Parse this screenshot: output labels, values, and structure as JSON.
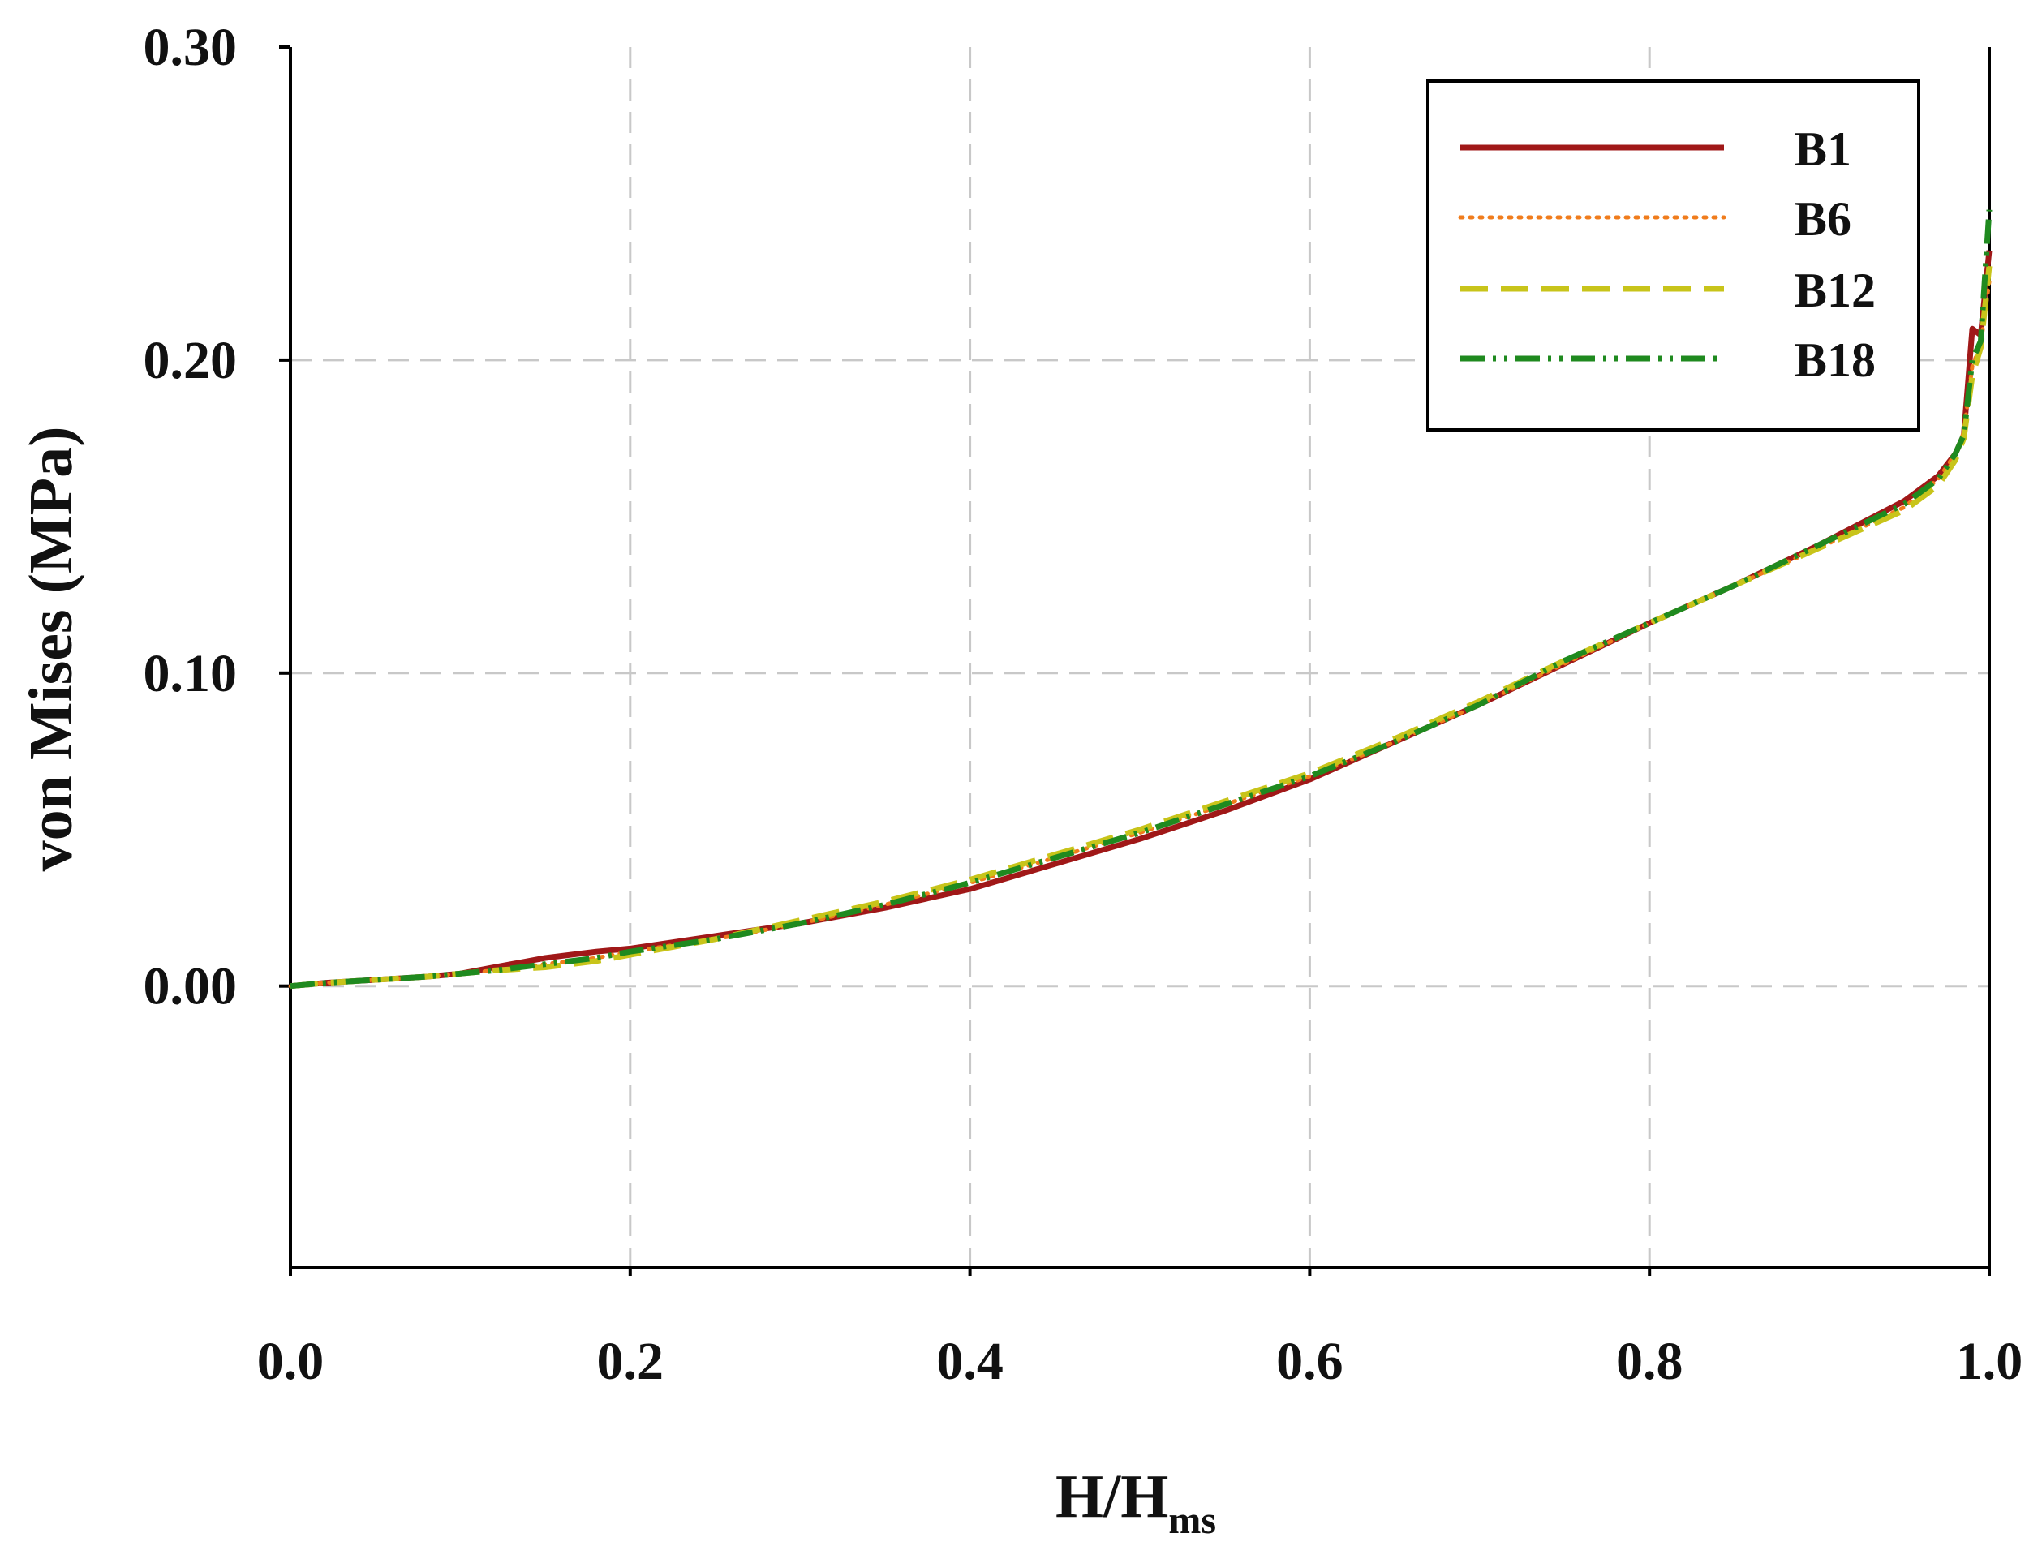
{
  "chart_data": {
    "type": "line",
    "xlabel": "H/H",
    "xlabel_subscript": "ms",
    "ylabel": "von Mises (MPa)",
    "xlim": [
      0.0,
      1.0
    ],
    "ylim": [
      -0.09,
      0.3
    ],
    "x_ticks": [
      "0.0",
      "0.2",
      "0.4",
      "0.6",
      "0.8",
      "1.0"
    ],
    "x_tick_values": [
      0.0,
      0.2,
      0.4,
      0.6,
      0.8,
      1.0
    ],
    "y_ticks": [
      "0.00",
      "0.10",
      "0.20",
      "0.30"
    ],
    "y_tick_values": [
      0.0,
      0.1,
      0.2,
      0.3
    ],
    "grid": true,
    "legend_position": "top-right",
    "series": [
      {
        "name": "B1",
        "color": "#a01818",
        "dash": "solid",
        "x": [
          0.0,
          0.02,
          0.05,
          0.08,
          0.1,
          0.12,
          0.15,
          0.18,
          0.2,
          0.25,
          0.3,
          0.35,
          0.4,
          0.45,
          0.5,
          0.55,
          0.6,
          0.65,
          0.7,
          0.75,
          0.8,
          0.85,
          0.9,
          0.95,
          0.97,
          0.98,
          0.985,
          0.99,
          0.995,
          1.0
        ],
        "y": [
          0.0,
          0.001,
          0.002,
          0.003,
          0.004,
          0.006,
          0.009,
          0.011,
          0.012,
          0.016,
          0.02,
          0.025,
          0.031,
          0.039,
          0.047,
          0.056,
          0.066,
          0.078,
          0.09,
          0.103,
          0.116,
          0.128,
          0.141,
          0.155,
          0.163,
          0.17,
          0.176,
          0.21,
          0.208,
          0.235
        ]
      },
      {
        "name": "B6",
        "color": "#f07c1c",
        "dash": "dotted",
        "x": [
          0.0,
          0.02,
          0.05,
          0.08,
          0.1,
          0.12,
          0.15,
          0.18,
          0.2,
          0.25,
          0.3,
          0.35,
          0.4,
          0.45,
          0.5,
          0.55,
          0.6,
          0.65,
          0.7,
          0.75,
          0.8,
          0.85,
          0.9,
          0.95,
          0.97,
          0.98,
          0.985,
          0.99,
          0.995,
          1.0
        ],
        "y": [
          0.0,
          0.001,
          0.002,
          0.003,
          0.004,
          0.005,
          0.007,
          0.009,
          0.011,
          0.015,
          0.02,
          0.026,
          0.033,
          0.041,
          0.049,
          0.058,
          0.067,
          0.078,
          0.09,
          0.103,
          0.116,
          0.128,
          0.14,
          0.153,
          0.162,
          0.17,
          0.177,
          0.198,
          0.205,
          0.225
        ]
      },
      {
        "name": "B12",
        "color": "#c8c41a",
        "dash": "dashed",
        "x": [
          0.0,
          0.02,
          0.05,
          0.08,
          0.1,
          0.12,
          0.15,
          0.18,
          0.2,
          0.25,
          0.3,
          0.35,
          0.4,
          0.45,
          0.5,
          0.55,
          0.6,
          0.65,
          0.7,
          0.75,
          0.8,
          0.85,
          0.9,
          0.95,
          0.97,
          0.98,
          0.985,
          0.99,
          0.995,
          1.0
        ],
        "y": [
          0.0,
          0.001,
          0.002,
          0.003,
          0.004,
          0.005,
          0.006,
          0.008,
          0.01,
          0.015,
          0.021,
          0.027,
          0.034,
          0.042,
          0.05,
          0.059,
          0.068,
          0.079,
          0.091,
          0.104,
          0.116,
          0.128,
          0.14,
          0.152,
          0.16,
          0.168,
          0.175,
          0.195,
          0.204,
          0.23
        ]
      },
      {
        "name": "B18",
        "color": "#1f8a1f",
        "dash": "dash-dot-dot",
        "x": [
          0.0,
          0.02,
          0.05,
          0.08,
          0.1,
          0.12,
          0.15,
          0.18,
          0.2,
          0.25,
          0.3,
          0.35,
          0.4,
          0.45,
          0.5,
          0.55,
          0.6,
          0.65,
          0.7,
          0.75,
          0.8,
          0.85,
          0.9,
          0.95,
          0.97,
          0.98,
          0.985,
          0.99,
          0.995,
          1.0
        ],
        "y": [
          0.0,
          0.001,
          0.002,
          0.003,
          0.004,
          0.005,
          0.007,
          0.009,
          0.011,
          0.015,
          0.02,
          0.026,
          0.033,
          0.041,
          0.049,
          0.058,
          0.067,
          0.078,
          0.09,
          0.104,
          0.116,
          0.128,
          0.141,
          0.154,
          0.162,
          0.17,
          0.176,
          0.2,
          0.206,
          0.248
        ]
      }
    ]
  }
}
